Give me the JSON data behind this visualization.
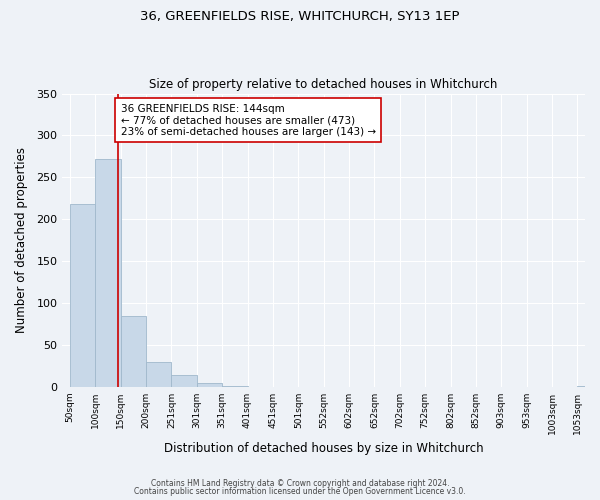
{
  "title": "36, GREENFIELDS RISE, WHITCHURCH, SY13 1EP",
  "subtitle": "Size of property relative to detached houses in Whitchurch",
  "xlabel": "Distribution of detached houses by size in Whitchurch",
  "ylabel": "Number of detached properties",
  "bar_values": [
    218,
    272,
    84,
    29,
    14,
    4,
    1,
    0,
    0,
    0,
    0,
    0,
    0,
    0,
    0,
    0,
    0,
    0,
    0,
    0,
    1
  ],
  "bar_labels": [
    "50sqm",
    "100sqm",
    "150sqm",
    "200sqm",
    "251sqm",
    "301sqm",
    "351sqm",
    "401sqm",
    "451sqm",
    "501sqm",
    "552sqm",
    "602sqm",
    "652sqm",
    "702sqm",
    "752sqm",
    "802sqm",
    "852sqm",
    "903sqm",
    "953sqm",
    "1003sqm",
    "1053sqm"
  ],
  "bar_color": "#c8d8e8",
  "bar_edge_color": "#a0b8cc",
  "bar_edge_width": 0.6,
  "ylim": [
    0,
    350
  ],
  "yticks": [
    0,
    50,
    100,
    150,
    200,
    250,
    300,
    350
  ],
  "property_line_x": 1.88,
  "property_line_color": "#cc0000",
  "annotation_line1": "36 GREENFIELDS RISE: 144sqm",
  "annotation_line2": "← 77% of detached houses are smaller (473)",
  "annotation_line3": "23% of semi-detached houses are larger (143) →",
  "annotation_box_edge_color": "#cc0000",
  "annotation_box_face_color": "#ffffff",
  "footer_line1": "Contains HM Land Registry data © Crown copyright and database right 2024.",
  "footer_line2": "Contains public sector information licensed under the Open Government Licence v3.0.",
  "bg_color": "#eef2f7",
  "grid_color": "#ffffff",
  "fig_width": 6.0,
  "fig_height": 5.0
}
